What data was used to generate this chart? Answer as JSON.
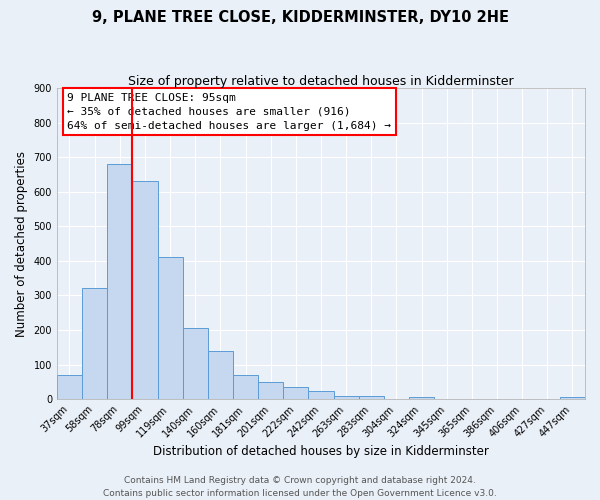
{
  "title": "9, PLANE TREE CLOSE, KIDDERMINSTER, DY10 2HE",
  "subtitle": "Size of property relative to detached houses in Kidderminster",
  "xlabel": "Distribution of detached houses by size in Kidderminster",
  "ylabel": "Number of detached properties",
  "bar_labels": [
    "37sqm",
    "58sqm",
    "78sqm",
    "99sqm",
    "119sqm",
    "140sqm",
    "160sqm",
    "181sqm",
    "201sqm",
    "222sqm",
    "242sqm",
    "263sqm",
    "283sqm",
    "304sqm",
    "324sqm",
    "345sqm",
    "365sqm",
    "386sqm",
    "406sqm",
    "427sqm",
    "447sqm"
  ],
  "bar_values": [
    70,
    320,
    680,
    630,
    410,
    207,
    140,
    70,
    48,
    35,
    22,
    10,
    8,
    0,
    5,
    0,
    0,
    0,
    0,
    0,
    7
  ],
  "bar_color": "#c5d8f0",
  "bar_edge_color": "#5b9bd5",
  "vline_pos": 2.5,
  "vline_color": "red",
  "annotation_line1": "9 PLANE TREE CLOSE: 95sqm",
  "annotation_line2": "← 35% of detached houses are smaller (916)",
  "annotation_line3": "64% of semi-detached houses are larger (1,684) →",
  "ylim": [
    0,
    900
  ],
  "yticks": [
    0,
    100,
    200,
    300,
    400,
    500,
    600,
    700,
    800,
    900
  ],
  "footer_line1": "Contains HM Land Registry data © Crown copyright and database right 2024.",
  "footer_line2": "Contains public sector information licensed under the Open Government Licence v3.0.",
  "bg_color": "#eaf0f8",
  "grid_color": "white",
  "title_fontsize": 10.5,
  "subtitle_fontsize": 9,
  "axis_label_fontsize": 8.5,
  "tick_fontsize": 7,
  "annotation_fontsize": 8,
  "footer_fontsize": 6.5
}
